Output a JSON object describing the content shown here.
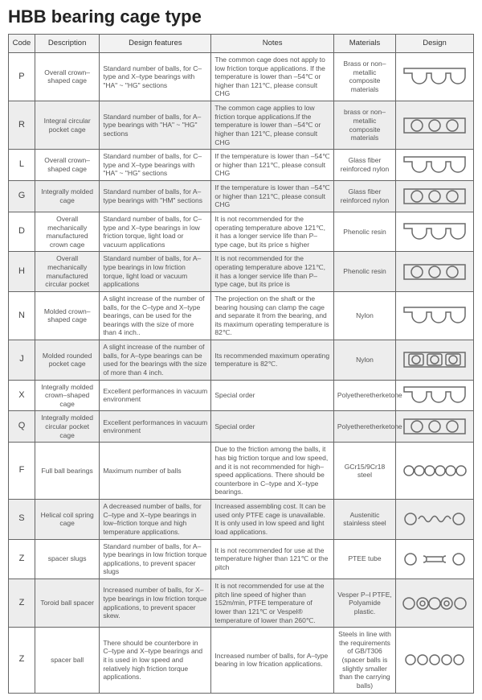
{
  "title": "HBB bearing cage type",
  "columns": [
    "Code",
    "Description",
    "Design features",
    "Notes",
    "Materials",
    "Design"
  ],
  "colors": {
    "header_bg": "#f2f2f2",
    "shade_bg": "#ededed",
    "border": "#666666",
    "text": "#555555",
    "svg_stroke": "#6a6a6a",
    "svg_fill_none": "none"
  },
  "rows": [
    {
      "code": "P",
      "desc": "Overall crown–shaped cage",
      "feat": "Standard number of balls, for C–type and X–type bearings with \"HA\" ~ \"HG\" sections",
      "notes": "The common cage does not apply to low friction torque applications. If the temperature is lower than –54℃ or higher than 121℃, please consult CHG",
      "mat": "Brass or non–metallic composite materials",
      "shade": false,
      "design": "crown"
    },
    {
      "code": "R",
      "desc": "Integral circular pocket cage",
      "feat": "Standard number of balls, for A–type bearings with \"HA\" ~ \"HG\" sections",
      "notes": "The common cage applies to low friction torque applications.If the temperature is lower than –54℃ or higher than 121℃, please consult CHG",
      "mat": "brass or non–metallic composite materials",
      "shade": true,
      "design": "rect3"
    },
    {
      "code": "L",
      "desc": "Overall crown–shaped cage",
      "feat": "Standard number of balls, for C–type and X–type bearings with \"HA\" ~ \"HG\" sections",
      "notes": "If the temperature is lower than –54℃ or higher than 121℃, please consult CHG",
      "mat": "Glass fiber reinforced nylon",
      "shade": false,
      "design": "crown"
    },
    {
      "code": "G",
      "desc": "Integrally molded cage",
      "feat": "Standard number of balls, for A–type bearings with \"HM\" sections",
      "notes": "If the temperature is lower than –54℃ or higher than 121℃, please consult CHG",
      "mat": "Glass fiber reinforced nylon",
      "shade": true,
      "design": "rect3"
    },
    {
      "code": "D",
      "desc": "Overall mechanically manufactured crown cage",
      "feat": "Standard number of balls, for C–type and X–type bearings in low friction torque, light load or vacuum applications",
      "notes": "It is not recommended for the operating temperature above 121℃, it has a longer service life than P–type cage, but its price s higher",
      "mat": "Phenolic resin",
      "shade": false,
      "design": "crown"
    },
    {
      "code": "H",
      "desc": "Overall mechanically manufactured circular pocket",
      "feat": "Standard number of balls, for A–type bearings in low friction torque, light load or vacuum applications",
      "notes": "It is not recommended for the operating temperature above 121℃, it has a longer service life than P–type cage, but its price is",
      "mat": "Phenolic resin",
      "shade": true,
      "design": "rect3"
    },
    {
      "code": "N",
      "desc": "Molded crown–shaped cage",
      "feat": "A slight increase of the number of balls, for the C–type and X–type bearings, can be used for the bearings with the size of more than 4 inch..",
      "notes": "The projection on the shaft or the bearing housing can clamp the cage and separate it from the bearing, and its maximum operating temperature is 82℃.",
      "mat": "Nylon",
      "shade": false,
      "design": "crownwide"
    },
    {
      "code": "J",
      "desc": "Molded rounded pocket cage",
      "feat": "A slight increase of the number of balls, for A–type bearings can be used for the bearings with the size of more than 4 inch.",
      "notes": "Its recommended maximum operating temperature is 82℃.",
      "mat": "Nylon",
      "shade": true,
      "design": "rect3sq"
    },
    {
      "code": "X",
      "desc": "Integrally molded crown–shaped cage",
      "feat": "Excellent performances in vacuum environment",
      "notes": "Special order",
      "mat": "Polyetheretherketone",
      "shade": false,
      "design": "crownsmall"
    },
    {
      "code": "Q",
      "desc": "Integrally molded circular pocket cage",
      "feat": "Excellent performances in vacuum environment",
      "notes": "Special order",
      "mat": "Polyetheretherketone",
      "shade": true,
      "design": "rect3"
    },
    {
      "code": "F",
      "desc": "Full ball bearings",
      "feat": "Maximum number of balls",
      "notes": "Due to the friction among the balls, it has big friction torque and low speed, and it is not recommended for high–speed applications. There should be counterbore in C–type and X–type bearings.",
      "mat": "GCr15/9Cr18 steel",
      "shade": false,
      "design": "balls6"
    },
    {
      "code": "S",
      "desc": "Helical coil spring cage",
      "feat": "A decreased number of balls, for C–type and X–type bearings in low–friction torque and high temperature applications.",
      "notes": "Increased assembling cost. It can be used only PTFE cage is unavailable. It is only used in low speed and light load applications.",
      "mat": "Austenitic stainless steel",
      "shade": true,
      "design": "spring"
    },
    {
      "code": "Z",
      "desc": "spacer slugs",
      "feat": "Standard number of balls, for A–type bearings in low friction torque applications, to prevent spacer slugs",
      "notes": "It is not recommended for use at the temperature higher than 121℃ or the pitch",
      "mat": "PTEE tube",
      "shade": false,
      "design": "slugs"
    },
    {
      "code": "Z",
      "desc": "Toroid ball spacer",
      "feat": "Increased number of balls, for X–type bearings in low friction torque applications, to prevent spacer skew.",
      "notes": "It is not recommended for use at the pitch line speed of higher than 152m/min, PTFE temperature of lower than 121℃ or Vespel® temperature of lower than 260℃.",
      "mat": "Vesper P–l PTFE, Polyamide plastic.",
      "shade": true,
      "design": "toroid"
    },
    {
      "code": "Z",
      "desc": "spacer ball",
      "feat": "There should be counterbore in C–type and X–type bearings and it is used in low speed and relatively high friction torque applications.",
      "notes": "Increased number of balls, for A–type bearing in low frication applications.",
      "mat": "Steels in line with the requirements of GB/T306 (spacer balls is slightly smaller than the carrying balls)",
      "shade": false,
      "design": "balls5"
    }
  ],
  "designs": {
    "crown": {
      "w": 84,
      "h": 26,
      "desc": "crown cage with 3 semicircle cutouts"
    },
    "crownwide": {
      "w": 84,
      "h": 26,
      "desc": "wider crown"
    },
    "crownsmall": {
      "w": 84,
      "h": 22,
      "desc": "small crown"
    },
    "rect3": {
      "w": 84,
      "h": 24,
      "desc": "rectangle with 3 circles"
    },
    "rect3sq": {
      "w": 84,
      "h": 24,
      "desc": "3 rounded squares in row"
    },
    "balls6": {
      "w": 84,
      "h": 20,
      "desc": "6 circles in a row"
    },
    "balls5": {
      "w": 84,
      "h": 20,
      "desc": "5 circles spaced"
    },
    "spring": {
      "w": 84,
      "h": 20,
      "desc": "circle spring circle"
    },
    "slugs": {
      "w": 84,
      "h": 20,
      "desc": "circle bone circle"
    },
    "toroid": {
      "w": 84,
      "h": 22,
      "desc": "circle donut circle donut circle"
    }
  }
}
